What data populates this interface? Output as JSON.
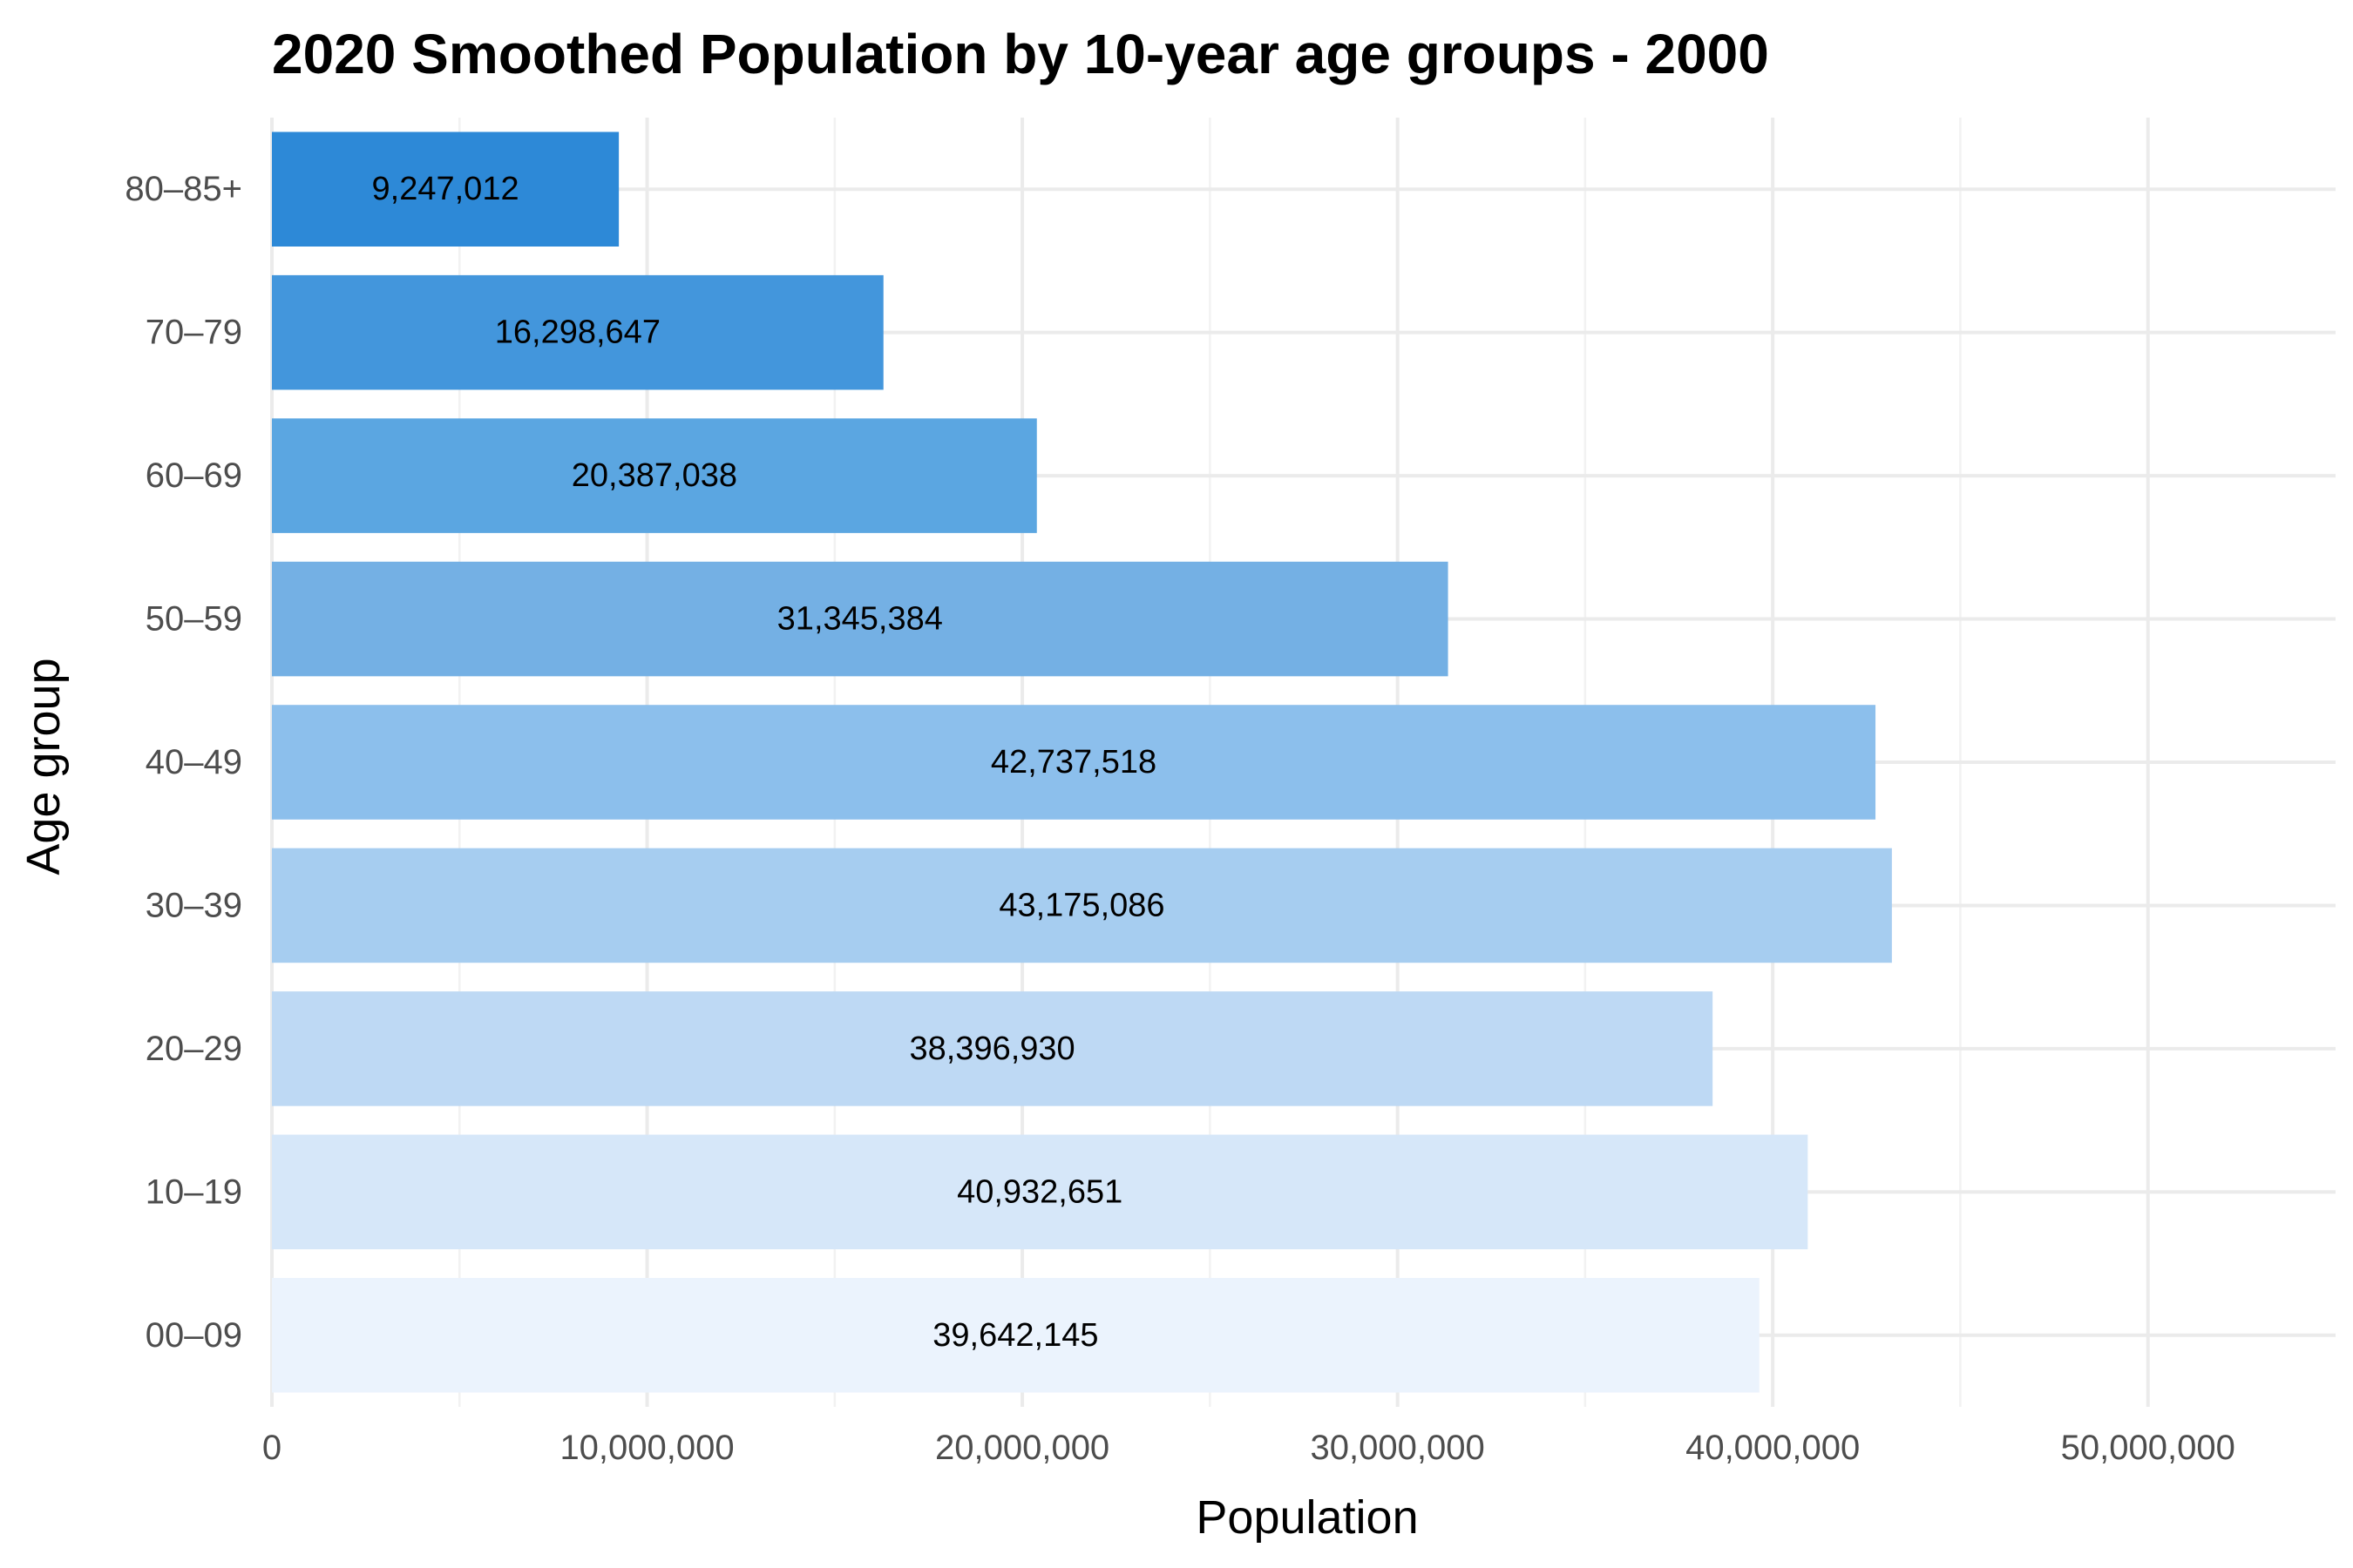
{
  "chart_data": {
    "type": "bar",
    "orientation": "horizontal",
    "title": "2020 Smoothed Population by 10-year age groups - 2000",
    "xlabel": "Population",
    "ylabel": "Age group",
    "categories": [
      "00–09",
      "10–19",
      "20–29",
      "30–39",
      "40–49",
      "50–59",
      "60–69",
      "70–79",
      "80–85+"
    ],
    "values": [
      39642145,
      40932651,
      38396930,
      43175086,
      42737518,
      31345384,
      20387038,
      16298647,
      9247012
    ],
    "value_labels": [
      "39,642,145",
      "40,932,651",
      "38,396,930",
      "43,175,086",
      "42,737,518",
      "31,345,384",
      "20,387,038",
      "16,298,647",
      "9,247,012"
    ],
    "bar_colors": [
      "#ebf3fd",
      "#d6e7f9",
      "#bed9f4",
      "#a6cdf0",
      "#8cbfec",
      "#74b0e4",
      "#5ba6e1",
      "#4396dc",
      "#2d89d7"
    ],
    "xlim": [
      0,
      55000000
    ],
    "xticks": [
      0,
      10000000,
      20000000,
      30000000,
      40000000,
      50000000
    ],
    "xtick_labels": [
      "0",
      "10,000,000",
      "20,000,000",
      "30,000,000",
      "40,000,000",
      "50,000,000"
    ],
    "grid": true,
    "legend": "none"
  }
}
